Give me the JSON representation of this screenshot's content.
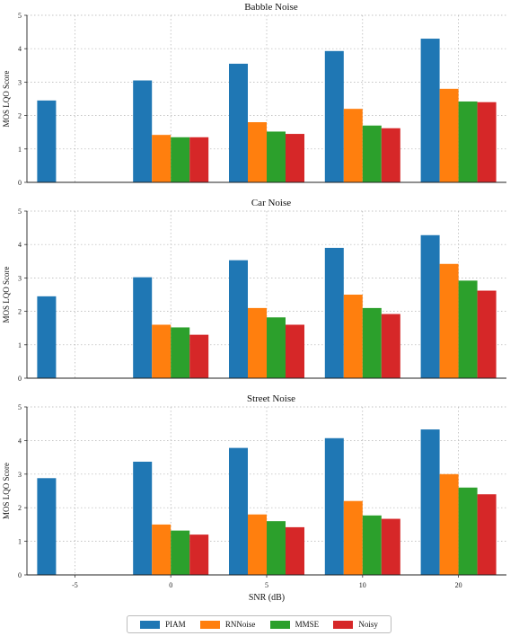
{
  "chart_data": {
    "type": "bar",
    "xlabel": "SNR (dB)",
    "categories": [
      "-5",
      "0",
      "5",
      "10",
      "20"
    ],
    "ylim": [
      0,
      5
    ],
    "yticks": [
      "0",
      "1",
      "2",
      "3",
      "4",
      "5"
    ],
    "grid": true,
    "legend_placement": "bottom-center",
    "series_names": [
      "PIAM",
      "RNNoise",
      "MMSE",
      "Noisy"
    ],
    "colors": [
      "#1f77b4",
      "#ff7f0e",
      "#2ca02c",
      "#d62728"
    ],
    "panels": [
      {
        "title": "Babble Noise",
        "ylabel": "MOS LQO Score",
        "series": [
          {
            "name": "PIAM",
            "values": [
              2.45,
              3.05,
              3.55,
              3.93,
              4.3
            ]
          },
          {
            "name": "RNNoise",
            "values": [
              null,
              1.42,
              1.8,
              2.2,
              2.8
            ]
          },
          {
            "name": "MMSE",
            "values": [
              null,
              1.35,
              1.52,
              1.7,
              2.42
            ]
          },
          {
            "name": "Noisy",
            "values": [
              null,
              1.35,
              1.45,
              1.62,
              2.4
            ]
          }
        ]
      },
      {
        "title": "Car Noise",
        "ylabel": "MOS LQO Score",
        "series": [
          {
            "name": "PIAM",
            "values": [
              2.45,
              3.02,
              3.53,
              3.9,
              4.28
            ]
          },
          {
            "name": "RNNoise",
            "values": [
              null,
              1.6,
              2.1,
              2.5,
              3.42
            ]
          },
          {
            "name": "MMSE",
            "values": [
              null,
              1.52,
              1.82,
              2.1,
              2.92
            ]
          },
          {
            "name": "Noisy",
            "values": [
              null,
              1.3,
              1.6,
              1.92,
              2.62
            ]
          }
        ]
      },
      {
        "title": "Street Noise",
        "ylabel": "MOS LQO Score",
        "series": [
          {
            "name": "PIAM",
            "values": [
              2.88,
              3.37,
              3.78,
              4.07,
              4.33
            ]
          },
          {
            "name": "RNNoise",
            "values": [
              null,
              1.5,
              1.8,
              2.2,
              3.0
            ]
          },
          {
            "name": "MMSE",
            "values": [
              null,
              1.32,
              1.6,
              1.77,
              2.6
            ]
          },
          {
            "name": "Noisy",
            "values": [
              null,
              1.2,
              1.42,
              1.67,
              2.4
            ]
          }
        ]
      }
    ]
  }
}
